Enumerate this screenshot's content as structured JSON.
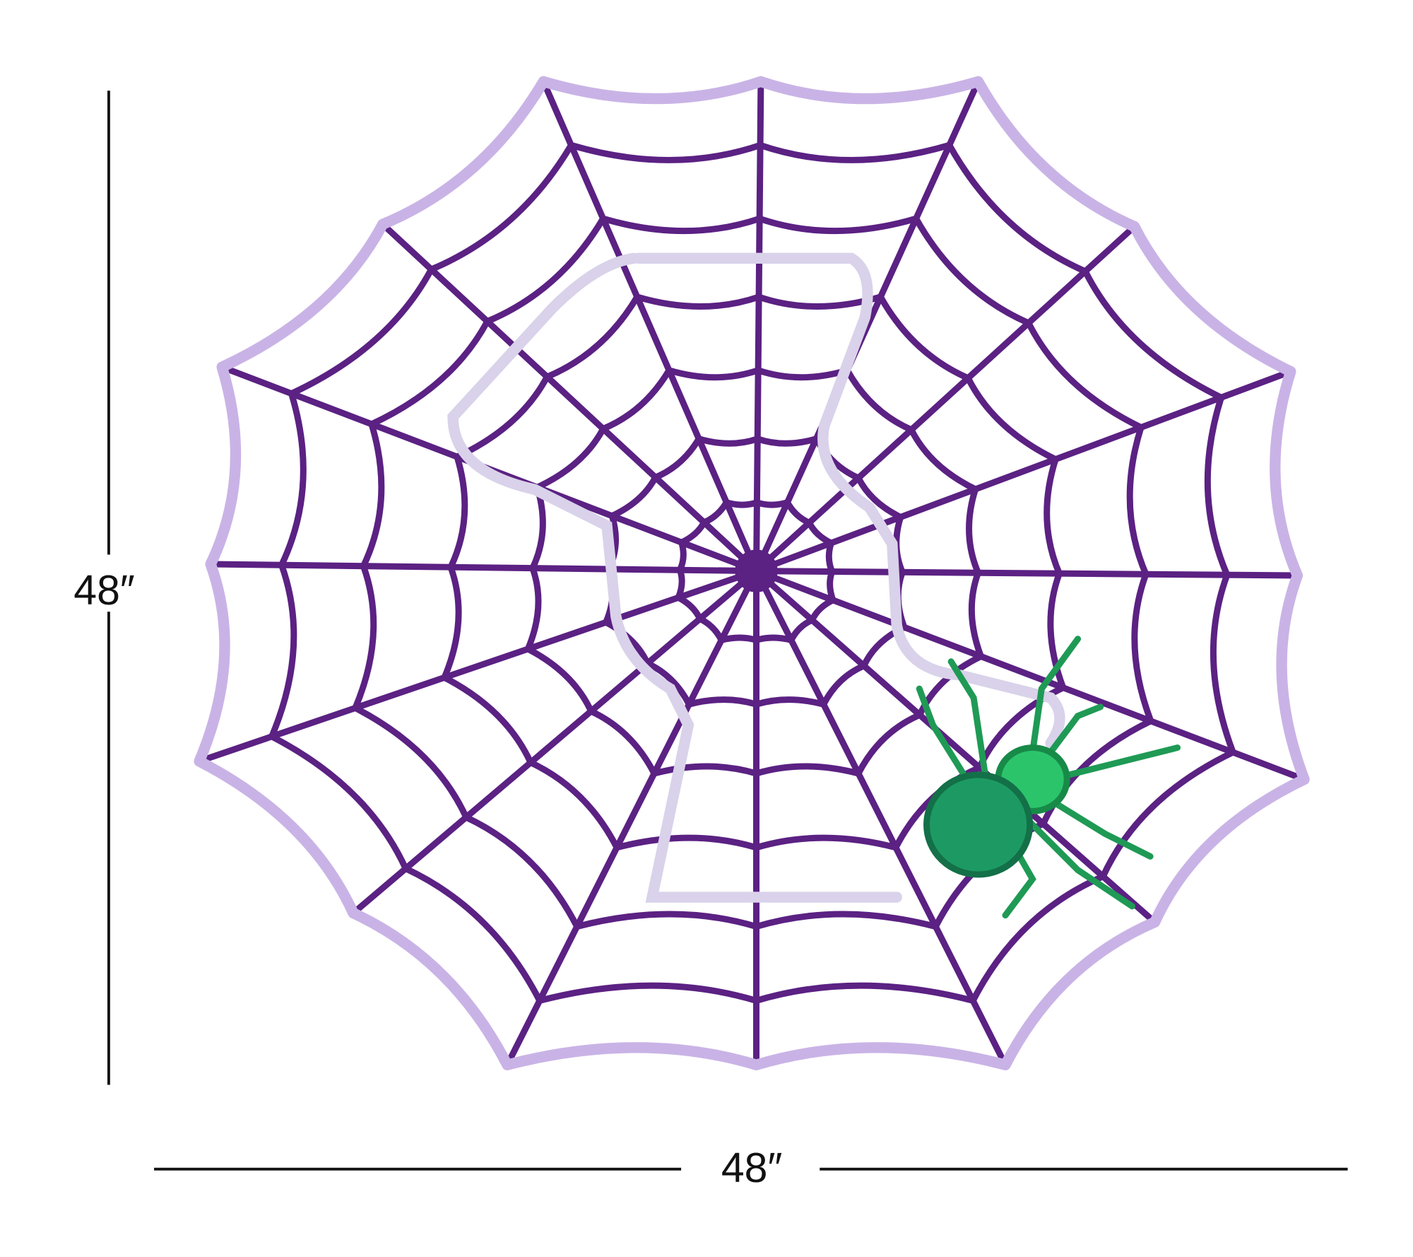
{
  "dimensions": {
    "height": "48″",
    "width": "48″"
  }
}
